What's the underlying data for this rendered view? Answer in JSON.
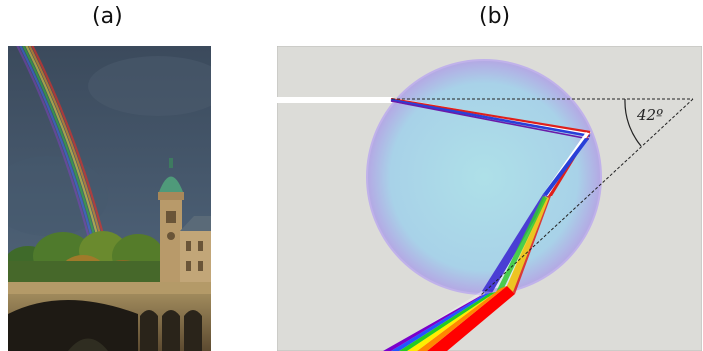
{
  "panels": {
    "a": {
      "label": "(a)"
    },
    "b": {
      "label": "(b)",
      "angle_label": "42º"
    }
  },
  "colors": {
    "diagram_background": "#dcdcd8",
    "droplet_fill": "#a9d6e6",
    "droplet_edge": "#b8a8e0",
    "sky": "#3a4c60",
    "spectrum": [
      "#ff0000",
      "#ff8800",
      "#ffee00",
      "#22cc22",
      "#2255ff",
      "#7a00cc"
    ]
  },
  "icons": {
    "photo": "rainbow-over-bridge-photo",
    "diagram": "raindrop-refraction-diagram"
  }
}
